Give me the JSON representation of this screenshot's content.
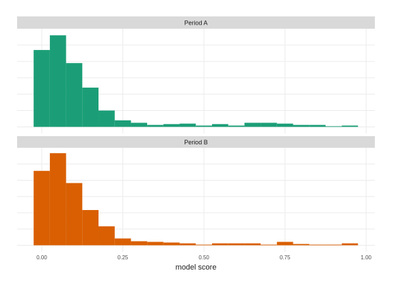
{
  "chart_data": [
    {
      "type": "histogram",
      "title": "Period A",
      "color": "#1b9e77",
      "grid": true,
      "bins": [
        -0.025,
        0.025,
        0.075,
        0.125,
        0.175,
        0.225,
        0.275,
        0.325,
        0.375,
        0.425,
        0.475,
        0.525,
        0.575,
        0.625,
        0.675,
        0.725,
        0.775,
        0.825,
        0.875,
        0.925,
        0.975
      ],
      "values": [
        470,
        560,
        390,
        240,
        100,
        40,
        25,
        12,
        17,
        20,
        8,
        17,
        8,
        25,
        25,
        20,
        12,
        12,
        4,
        8
      ],
      "xlim": [
        -0.076,
        1.027
      ],
      "xticks": [
        0,
        0.25,
        0.5,
        0.75,
        1
      ],
      "ylim": [
        -40,
        600
      ],
      "yticks": [
        0,
        100,
        200,
        300,
        400,
        500
      ]
    },
    {
      "type": "histogram",
      "title": "Period B",
      "color": "#d95f02",
      "grid": true,
      "xlabel": "model score",
      "bins": [
        -0.025,
        0.025,
        0.075,
        0.125,
        0.175,
        0.225,
        0.275,
        0.325,
        0.375,
        0.425,
        0.475,
        0.525,
        0.575,
        0.625,
        0.675,
        0.725,
        0.775,
        0.825,
        0.875,
        0.925,
        0.975
      ],
      "values": [
        458,
        567,
        383,
        217,
        117,
        42,
        25,
        21,
        17,
        12,
        4,
        12,
        12,
        12,
        4,
        21,
        8,
        4,
        4,
        12
      ],
      "xlim": [
        -0.076,
        1.027
      ],
      "xticks": [
        {
          "value": 0,
          "label": "0.00"
        },
        {
          "value": 0.25,
          "label": "0.25"
        },
        {
          "value": 0.5,
          "label": "0.50"
        },
        {
          "value": 0.75,
          "label": "0.75"
        },
        {
          "value": 1,
          "label": "1.00"
        }
      ],
      "ylim": [
        -40,
        600
      ],
      "yticks": [
        0,
        100,
        200,
        300,
        400,
        500
      ]
    }
  ]
}
